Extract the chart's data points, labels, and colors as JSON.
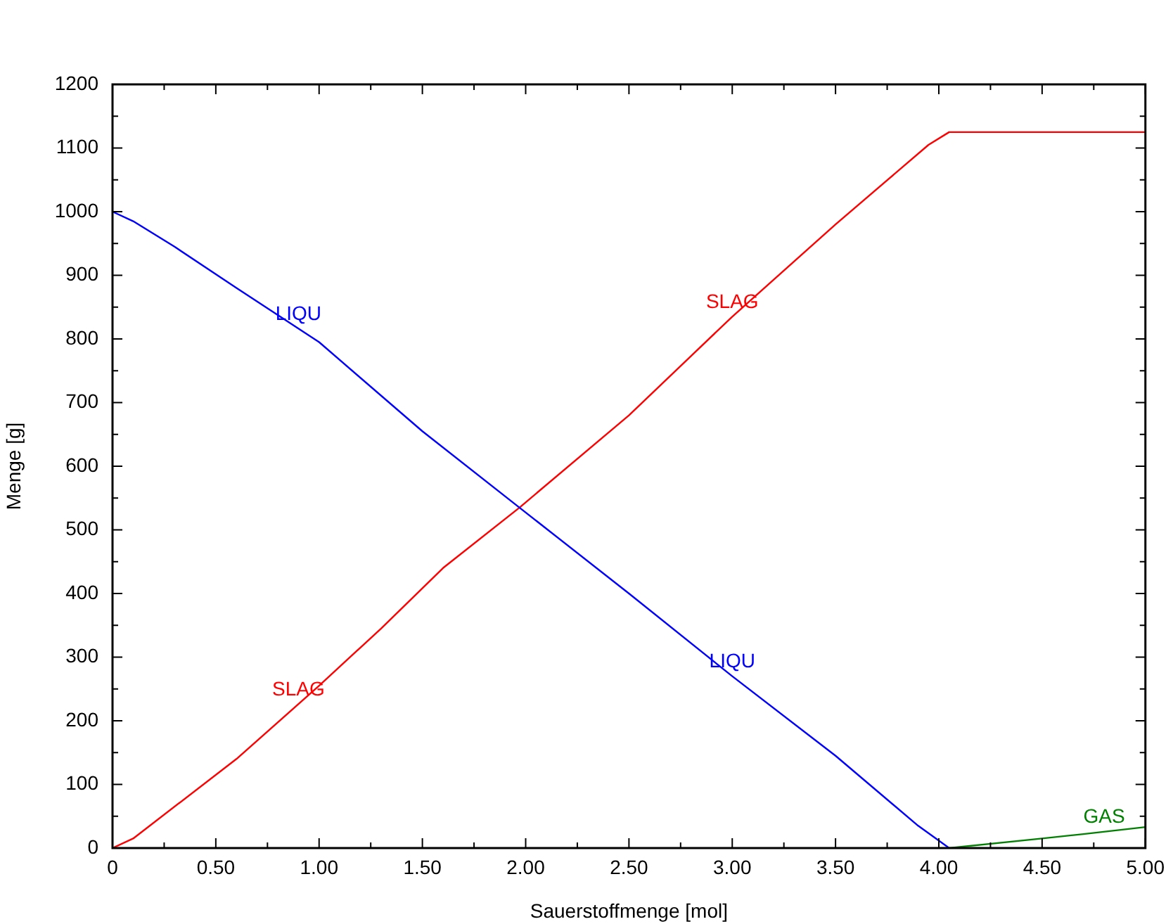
{
  "chart_data": {
    "type": "line",
    "xlabel": "Sauerstoffmenge [mol]",
    "ylabel": "Menge [g]",
    "xlim": [
      0,
      5
    ],
    "ylim": [
      0,
      1200
    ],
    "xticks": [
      0,
      {
        "value": 0.25,
        "label": null
      },
      {
        "value": 0.5,
        "label": "0.50"
      },
      {
        "value": 0.75,
        "label": null
      },
      {
        "value": 1,
        "label": "1.00"
      },
      {
        "value": 1.25,
        "label": null
      },
      {
        "value": 1.5,
        "label": "1.50"
      },
      {
        "value": 1.75,
        "label": null
      },
      {
        "value": 2,
        "label": "2.00"
      },
      {
        "value": 2.25,
        "label": null
      },
      {
        "value": 2.5,
        "label": "2.50"
      },
      {
        "value": 2.75,
        "label": null
      },
      {
        "value": 3,
        "label": "3.00"
      },
      {
        "value": 3.25,
        "label": null
      },
      {
        "value": 3.5,
        "label": "3.50"
      },
      {
        "value": 3.75,
        "label": null
      },
      {
        "value": 4,
        "label": "4.00"
      },
      {
        "value": 4.25,
        "label": null
      },
      {
        "value": 4.5,
        "label": "4.50"
      },
      {
        "value": 4.75,
        "label": null
      },
      {
        "value": 5,
        "label": "5.00"
      }
    ],
    "yticks": [
      0,
      {
        "value": 50,
        "label": null
      },
      100,
      {
        "value": 150,
        "label": null
      },
      200,
      {
        "value": 250,
        "label": null
      },
      300,
      {
        "value": 350,
        "label": null
      },
      400,
      {
        "value": 450,
        "label": null
      },
      500,
      {
        "value": 550,
        "label": null
      },
      600,
      {
        "value": 650,
        "label": null
      },
      700,
      {
        "value": 750,
        "label": null
      },
      800,
      {
        "value": 850,
        "label": null
      },
      900,
      {
        "value": 950,
        "label": null
      },
      1000,
      {
        "value": 1050,
        "label": null
      },
      1100,
      {
        "value": 1150,
        "label": null
      },
      1200
    ],
    "grid": false,
    "legend": false,
    "marker": "none",
    "line_style": "solid",
    "series": [
      {
        "color": "#0000ff",
        "x": [
          0,
          0.1,
          0.3,
          0.6,
          1.0,
          1.5,
          1.97,
          2.5,
          3.0,
          3.5,
          3.9,
          4.05
        ],
        "values": [
          1000,
          985,
          945,
          880,
          795,
          655,
          535,
          400,
          270,
          145,
          35,
          0
        ]
      },
      {
        "color": "#ff0000",
        "x": [
          0,
          0.1,
          0.6,
          1.0,
          1.3,
          1.6,
          1.97,
          2.5,
          3.0,
          3.5,
          3.95,
          4.05,
          5.0
        ],
        "values": [
          0,
          15,
          140,
          255,
          345,
          440,
          535,
          680,
          835,
          980,
          1105,
          1125,
          1125
        ]
      },
      {
        "color": "#008000",
        "x": [
          4.05,
          4.5,
          4.7,
          5.0
        ],
        "values": [
          0,
          15,
          22,
          33
        ]
      }
    ],
    "annotations": [
      {
        "text": "LIQU",
        "x": 0.9,
        "y": 816
      },
      {
        "text": "LIQU",
        "x": 3.0,
        "y": 270
      },
      {
        "text": "SLAG",
        "x": 0.9,
        "y": 226
      },
      {
        "text": "SLAG",
        "x": 3.0,
        "y": 835
      },
      {
        "text": "GAS",
        "x": 4.8,
        "y": 26
      }
    ]
  }
}
